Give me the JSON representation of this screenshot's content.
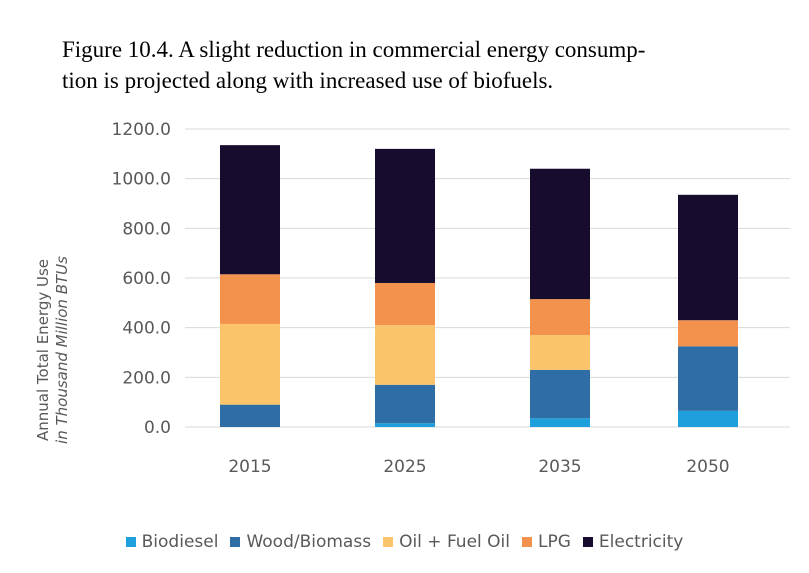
{
  "caption": {
    "line1": "Figure 10.4.  A slight reduction in commercial energy consump-",
    "line2": "tion is projected along with increased use of biofuels."
  },
  "chart_data": {
    "type": "bar",
    "stacked": true,
    "categories": [
      "2015",
      "2025",
      "2035",
      "2050"
    ],
    "series": [
      {
        "name": "Biodiesel",
        "color": "#1f9fdc",
        "values": [
          0,
          15,
          35,
          65
        ]
      },
      {
        "name": "Wood/Biomass",
        "color": "#2f6ea4",
        "values": [
          90,
          155,
          195,
          260
        ]
      },
      {
        "name": "Oil + Fuel Oil",
        "color": "#fcc46a",
        "values": [
          325,
          240,
          140,
          0
        ]
      },
      {
        "name": "LPG",
        "color": "#f3924c",
        "values": [
          200,
          170,
          145,
          105
        ]
      },
      {
        "name": "Electricity",
        "color": "#170c2e",
        "values": [
          520,
          540,
          525,
          505
        ]
      }
    ],
    "ylabel_line1": "Annual Total Energy Use",
    "ylabel_line2": "in Thousand Million BTUs",
    "yticks": [
      "0.0",
      "200.0",
      "400.0",
      "600.0",
      "800.0",
      "1000.0",
      "1200.0"
    ],
    "ylim": [
      0,
      1200
    ],
    "grid": true,
    "legend_position": "bottom"
  }
}
